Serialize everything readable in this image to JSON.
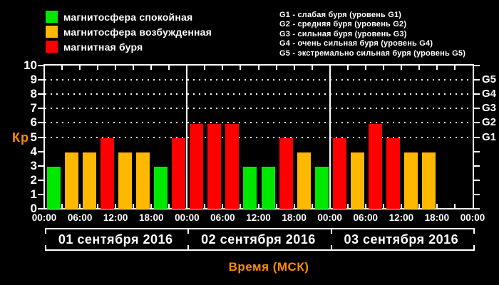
{
  "colors": {
    "background": "#000000",
    "frame": "#ffffff",
    "text": "#ffffff",
    "accent_orange": "#ff8c00",
    "quiet_green": "#00e800",
    "disturbed_orange": "#ffb800",
    "storm_red": "#ff0000"
  },
  "legend": {
    "items": [
      {
        "key": "quiet_green",
        "label": "магнитосфера спокойная"
      },
      {
        "key": "disturbed_orange",
        "label": "магнитосфера возбужденная"
      },
      {
        "key": "storm_red",
        "label": "магнитная буря"
      }
    ]
  },
  "storm_scale": {
    "lines": [
      "G1 - слабая буря (уровень G1)",
      "G2 - средняя буря (уровень G2)",
      "G3 - сильная буря (уровень G3)",
      "G4 - очень сильная буря (уровень G4)",
      "G5 - экстремально сильная буря (уровень G5)"
    ]
  },
  "chart_data": {
    "type": "bar",
    "title": "",
    "ylabel": "Кр",
    "xlabel": "Время (МСК)",
    "ylim": [
      0,
      10
    ],
    "yticks": [
      0,
      1,
      2,
      3,
      4,
      5,
      6,
      7,
      8,
      9,
      10
    ],
    "grid_levels_kp": [
      5,
      6,
      7,
      8,
      9
    ],
    "grid_style": "dotted",
    "right_axis": [
      {
        "label": "G1",
        "kp": 5
      },
      {
        "label": "G2",
        "kp": 6
      },
      {
        "label": "G3",
        "kp": 7
      },
      {
        "label": "G4",
        "kp": 8
      },
      {
        "label": "G5",
        "kp": 9
      }
    ],
    "x_tick_labels_per_day": [
      "00:00",
      "06:00",
      "12:00",
      "18:00"
    ],
    "x_final_tick_label": "00:00",
    "bar_interval_hours": 3,
    "color_rule": {
      "green": "Kp < 4",
      "orange": "Kp = 4",
      "red": "Kp >= 5"
    },
    "days": [
      {
        "date": "01 сентября 2016",
        "kp": [
          3,
          4,
          4,
          5,
          4,
          4,
          3,
          5
        ]
      },
      {
        "date": "02 сентября 2016",
        "kp": [
          6,
          6,
          6,
          3,
          3,
          5,
          4,
          3
        ]
      },
      {
        "date": "03 сентября 2016",
        "kp": [
          5,
          4,
          6,
          5,
          4,
          4,
          null,
          null
        ]
      }
    ]
  }
}
